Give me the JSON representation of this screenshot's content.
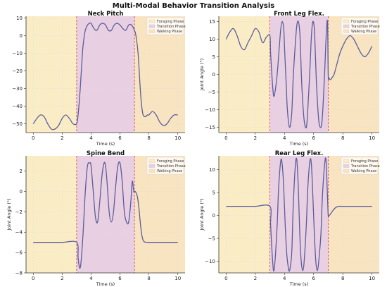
{
  "figure": {
    "title": "Multi-Modal Behavior Transition Analysis"
  },
  "colors": {
    "foraging": "#faedc6",
    "transition": "#e9cfe2",
    "walking": "#f9e4c2",
    "line": "#5a5e9c",
    "boundary": "#d94052",
    "grid": "#dddddd",
    "axis": "#333333"
  },
  "chart_data": [
    {
      "type": "line",
      "title": "Neck Pitch",
      "xlabel": "Time (s)",
      "ylabel": "",
      "xlim": [
        -0.5,
        10.5
      ],
      "ylim": [
        -55,
        11
      ],
      "xticks": [
        0,
        2,
        4,
        6,
        8,
        10
      ],
      "yticks": [
        10,
        0,
        -10,
        -20,
        -30,
        -40,
        -50
      ],
      "phases": [
        {
          "name": "Foraging Phase",
          "start": -0.5,
          "end": 3
        },
        {
          "name": "Transition Phase",
          "start": 3,
          "end": 7
        },
        {
          "name": "Walking Phase",
          "start": 7,
          "end": 10.5
        }
      ],
      "boundaries": [
        3,
        7
      ],
      "legend": "top-right",
      "grid": true,
      "series": [
        {
          "x": [
            0,
            0.25,
            0.5,
            0.75,
            1,
            1.25,
            1.5,
            1.75,
            2,
            2.25,
            2.5,
            2.75,
            3,
            3.1,
            3.25,
            3.4,
            3.5,
            3.6,
            3.75,
            3.9,
            4,
            4.2,
            4.4,
            4.6,
            4.8,
            5,
            5.2,
            5.4,
            5.6,
            5.8,
            6,
            6.2,
            6.4,
            6.6,
            6.8,
            7,
            7.1,
            7.25,
            7.4,
            7.5,
            7.6,
            7.75,
            7.9,
            8,
            8.25,
            8.5,
            8.75,
            9,
            9.25,
            9.5,
            9.75,
            10
          ],
          "y": [
            -50,
            -47,
            -45,
            -46,
            -50,
            -53,
            -53,
            -51,
            -47,
            -45,
            -47,
            -50,
            -50,
            -45,
            -30,
            -10,
            -2,
            3,
            6,
            7,
            7,
            4,
            3,
            6,
            7,
            6,
            3,
            3,
            6,
            7,
            6,
            4,
            3,
            6,
            6,
            3,
            0,
            -10,
            -30,
            -40,
            -45,
            -46,
            -45,
            -45,
            -43,
            -45,
            -49,
            -51,
            -50,
            -47,
            -45,
            -45
          ]
        }
      ]
    },
    {
      "type": "line",
      "title": "Front Leg Flex.",
      "xlabel": "Time (s)",
      "ylabel": "Joint Angle (°)",
      "xlim": [
        -0.5,
        10.5
      ],
      "ylim": [
        -16.5,
        16.5
      ],
      "xticks": [
        0,
        2,
        4,
        6,
        8,
        10
      ],
      "yticks": [
        15,
        10,
        5,
        0,
        -5,
        -10,
        -15
      ],
      "phases": [
        {
          "name": "Foraging Phase",
          "start": -0.5,
          "end": 3
        },
        {
          "name": "Transition Phase",
          "start": 3,
          "end": 7
        },
        {
          "name": "Walking Phase",
          "start": 7,
          "end": 10.5
        }
      ],
      "boundaries": [
        3,
        7
      ],
      "legend": "top-right",
      "grid": true,
      "series": [
        {
          "x": [
            0,
            0.25,
            0.5,
            0.75,
            1,
            1.25,
            1.5,
            1.75,
            2,
            2.25,
            2.5,
            2.75,
            3,
            3.05,
            3.15,
            3.25,
            3.35,
            3.5,
            3.65,
            3.75,
            3.85,
            3.95,
            4,
            4.1,
            4.2,
            4.35,
            4.5,
            4.6,
            4.75,
            4.85,
            4.95,
            5.05,
            5.1,
            5.2,
            5.35,
            5.5,
            5.6,
            5.75,
            5.85,
            5.95,
            6.05,
            6.1,
            6.2,
            6.35,
            6.5,
            6.6,
            6.75,
            6.85,
            6.95,
            7,
            7.05,
            7.15,
            7.25,
            7.4,
            7.6,
            7.8,
            8,
            8.25,
            8.5,
            8.75,
            9,
            9.25,
            9.5,
            9.75,
            10
          ],
          "y": [
            10,
            12,
            13,
            11,
            8,
            7,
            9,
            11,
            13,
            12,
            9,
            10.5,
            11,
            6,
            -1,
            -6,
            -5,
            0,
            8,
            13,
            15,
            13,
            8,
            -1,
            -10,
            -15,
            -11,
            -1,
            9,
            14,
            15,
            12,
            7,
            -4,
            -13,
            -15,
            -10,
            2,
            11,
            15,
            13,
            8,
            -3,
            -13,
            -15,
            -12,
            0,
            10,
            15,
            0,
            -1,
            -1.5,
            -1,
            0,
            3,
            6,
            8,
            10,
            11,
            10,
            8,
            6,
            5,
            6,
            8
          ]
        }
      ]
    },
    {
      "type": "line",
      "title": "Spine Bend",
      "xlabel": "Time (s)",
      "ylabel": "Joint Angle (°)",
      "xlim": [
        -0.5,
        10.5
      ],
      "ylim": [
        -8,
        3.5
      ],
      "xticks": [
        0,
        2,
        4,
        6,
        8,
        10
      ],
      "yticks": [
        2,
        0,
        -2,
        -4,
        -6,
        -8
      ],
      "phases": [
        {
          "name": "Foraging Phase",
          "start": -0.5,
          "end": 3
        },
        {
          "name": "Transition Phase",
          "start": 3,
          "end": 7
        },
        {
          "name": "Walking Phase",
          "start": 7,
          "end": 10.5
        }
      ],
      "boundaries": [
        3,
        7
      ],
      "legend": "top-right",
      "grid": true,
      "series": [
        {
          "x": [
            0,
            1,
            2,
            3,
            3.1,
            3.2,
            3.3,
            3.45,
            3.6,
            3.75,
            3.9,
            4,
            4.15,
            4.3,
            4.45,
            4.6,
            4.75,
            4.9,
            5,
            5.1,
            5.25,
            5.4,
            5.55,
            5.7,
            5.85,
            6,
            6.15,
            6.3,
            6.45,
            6.6,
            6.75,
            6.85,
            6.95,
            7,
            7.05,
            7.1,
            7.2,
            7.3,
            7.4,
            7.5,
            7.6,
            7.7,
            7.8,
            8,
            8.5,
            9,
            9.5,
            10
          ],
          "y": [
            -5,
            -5,
            -5,
            -5,
            -6.5,
            -7.5,
            -7,
            -4,
            0,
            2.5,
            2.8,
            2.5,
            0,
            -2.5,
            -3,
            -1,
            1.5,
            2.8,
            2.5,
            1,
            -2,
            -3,
            -2,
            0.5,
            2.5,
            2.8,
            1,
            -2,
            -3,
            -3,
            -1,
            1,
            0,
            0,
            0,
            -0.1,
            -0.5,
            -1.5,
            -3,
            -4.2,
            -4.8,
            -4.95,
            -5,
            -5,
            -5,
            -5,
            -5,
            -5
          ]
        }
      ]
    },
    {
      "type": "line",
      "title": "Rear Leg Flex.",
      "xlabel": "Time (s)",
      "ylabel": "Joint Angle (°)",
      "xlim": [
        -0.5,
        10.5
      ],
      "ylim": [
        -12.5,
        13
      ],
      "xticks": [
        0,
        2,
        4,
        6,
        8,
        10
      ],
      "yticks": [
        10,
        5,
        0,
        -5,
        -10
      ],
      "phases": [
        {
          "name": "Foraging Phase",
          "start": -0.5,
          "end": 3
        },
        {
          "name": "Transition Phase",
          "start": 3,
          "end": 7
        },
        {
          "name": "Walking Phase",
          "start": 7,
          "end": 10.5
        }
      ],
      "boundaries": [
        3,
        7
      ],
      "legend": "top-right",
      "grid": true,
      "series": [
        {
          "x": [
            0,
            1,
            2,
            3,
            3.05,
            3.15,
            3.25,
            3.35,
            3.5,
            3.6,
            3.75,
            3.85,
            3.95,
            4.05,
            4.15,
            4.25,
            4.35,
            4.5,
            4.6,
            4.75,
            4.85,
            4.95,
            5.05,
            5.15,
            5.25,
            5.35,
            5.5,
            5.6,
            5.75,
            5.85,
            5.95,
            6.05,
            6.15,
            6.25,
            6.35,
            6.5,
            6.6,
            6.75,
            6.85,
            6.95,
            7,
            7.05,
            7.15,
            7.3,
            7.5,
            7.7,
            7.9,
            8,
            8.5,
            9,
            10
          ],
          "y": [
            2,
            2,
            2,
            2,
            -2,
            -8,
            -12,
            -10,
            -2,
            6,
            12,
            11,
            6,
            -2,
            -8,
            -11,
            -12,
            -8,
            2,
            11,
            12,
            6,
            -4,
            -10,
            -12,
            -10,
            -2,
            6,
            12,
            11,
            4,
            -4,
            -10,
            -12,
            -10,
            -4,
            4,
            11,
            12,
            4,
            0,
            0,
            0.3,
            1,
            1.7,
            2,
            2,
            2,
            2,
            2,
            2
          ]
        }
      ]
    }
  ]
}
